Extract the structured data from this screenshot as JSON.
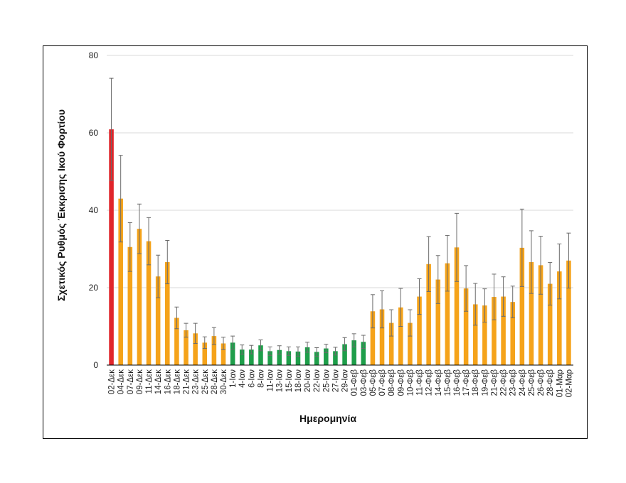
{
  "colors": {
    "red": "#e0262b",
    "orange": "#f5a31a",
    "green": "#1e9e4a",
    "error_bar": "#6b6b6b",
    "grid": "#d9d9d9"
  },
  "chart_data": {
    "type": "bar",
    "title": "",
    "xlabel": "Ημερομηνία",
    "ylabel": "Σχετικός Ρυθμός Έκκρισης Ικού Φορτίου",
    "ylim": [
      0,
      80
    ],
    "yticks": [
      0,
      20,
      40,
      60,
      80
    ],
    "grid": true,
    "categories": [
      "02-Δεκ",
      "04-Δεκ",
      "07-Δεκ",
      "09-Δεκ",
      "11-Δεκ",
      "14-Δεκ",
      "16-Δεκ",
      "18-Δεκ",
      "21-Δεκ",
      "23-Δεκ",
      "25-Δεκ",
      "28-Δεκ",
      "30-Δεκ",
      "1-Ιαν",
      "4-Ιαν",
      "6-Ιαν",
      "8-Ιαν",
      "11-Ιαν",
      "13-Ιαν",
      "15-Ιαν",
      "18-Ιαν",
      "20-Ιαν",
      "22-Ιαν",
      "25-Ιαν",
      "27-Ιαν",
      "29-Ιαν",
      "01-Φεβ",
      "03-Φεβ",
      "05-Φεβ",
      "07-Φεβ",
      "08-Φεβ",
      "09-Φεβ",
      "10-Φεβ",
      "11-Φεβ",
      "12-Φεβ",
      "14-Φεβ",
      "15-Φεβ",
      "16-Φεβ",
      "17-Φεβ",
      "18-Φεβ",
      "19-Φεβ",
      "21-Φεβ",
      "22-Φεβ",
      "23-Φεβ",
      "24-Φεβ",
      "25-Φεβ",
      "26-Φεβ",
      "28-Φεβ",
      "01-Μαρ",
      "02-Μαρ"
    ],
    "values": [
      60.9,
      43.0,
      30.5,
      35.2,
      32.0,
      22.9,
      26.6,
      12.2,
      9.0,
      8.2,
      5.8,
      7.5,
      5.6,
      5.8,
      4.0,
      4.0,
      5.1,
      3.6,
      3.9,
      3.6,
      3.5,
      4.6,
      3.4,
      4.3,
      3.6,
      5.4,
      6.4,
      6.0,
      13.9,
      14.4,
      10.9,
      14.9,
      10.9,
      17.7,
      26.1,
      22.1,
      26.3,
      30.4,
      19.8,
      15.7,
      15.4,
      17.6,
      17.7,
      16.3,
      30.3,
      26.6,
      25.8,
      21.0,
      24.2,
      27.0
    ],
    "errors": [
      13.2,
      11.2,
      6.3,
      6.4,
      6.1,
      5.5,
      5.6,
      2.8,
      1.8,
      2.6,
      1.5,
      2.2,
      1.6,
      1.7,
      1.2,
      1.1,
      1.4,
      1.1,
      1.1,
      1.1,
      1.2,
      1.3,
      1.1,
      1.1,
      1.0,
      1.7,
      1.7,
      1.7,
      4.3,
      4.8,
      3.4,
      4.9,
      3.4,
      4.6,
      7.1,
      6.2,
      7.2,
      8.8,
      5.9,
      5.4,
      4.3,
      5.9,
      5.1,
      4.1,
      10.0,
      8.1,
      7.5,
      5.5,
      7.1,
      7.1
    ],
    "bar_colors": [
      "red",
      "orange",
      "orange",
      "orange",
      "orange",
      "orange",
      "orange",
      "orange",
      "orange",
      "orange",
      "orange",
      "orange",
      "orange",
      "green",
      "green",
      "green",
      "green",
      "green",
      "green",
      "green",
      "green",
      "green",
      "green",
      "green",
      "green",
      "green",
      "green",
      "green",
      "orange",
      "orange",
      "orange",
      "orange",
      "orange",
      "orange",
      "orange",
      "orange",
      "orange",
      "orange",
      "orange",
      "orange",
      "orange",
      "orange",
      "orange",
      "orange",
      "orange",
      "orange",
      "orange",
      "orange",
      "orange",
      "orange"
    ]
  }
}
